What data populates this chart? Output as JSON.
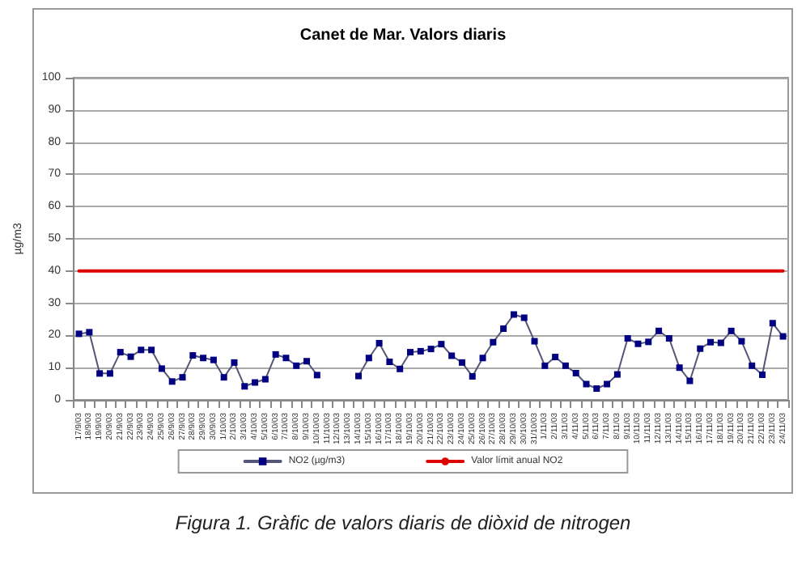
{
  "chart_data": {
    "type": "line",
    "title": "Canet de Mar. Valors diaris",
    "ylabel": "µg/m3",
    "categories": [
      "17/9/03",
      "18/9/03",
      "19/9/03",
      "20/9/03",
      "21/9/03",
      "22/9/03",
      "23/9/03",
      "24/9/03",
      "25/9/03",
      "26/9/03",
      "27/9/03",
      "28/9/03",
      "29/9/03",
      "30/9/03",
      "1/10/03",
      "2/10/03",
      "3/10/03",
      "4/10/03",
      "5/10/03",
      "6/10/03",
      "7/10/03",
      "8/10/03",
      "9/10/03",
      "10/10/03",
      "11/10/03",
      "12/10/03",
      "13/10/03",
      "14/10/03",
      "15/10/03",
      "16/10/03",
      "17/10/03",
      "18/10/03",
      "19/10/03",
      "20/10/03",
      "21/10/03",
      "22/10/03",
      "23/10/03",
      "24/10/03",
      "25/10/03",
      "26/10/03",
      "27/10/03",
      "28/10/03",
      "29/10/03",
      "30/10/03",
      "31/10/03",
      "1/11/03",
      "2/11/03",
      "3/11/03",
      "4/11/03",
      "5/11/03",
      "6/11/03",
      "7/11/03",
      "8/11/03",
      "9/11/03",
      "10/11/03",
      "11/11/03",
      "12/11/03",
      "13/11/03",
      "14/11/03",
      "15/11/03",
      "16/11/03",
      "17/11/03",
      "18/11/03",
      "19/11/03",
      "20/11/03",
      "21/11/03",
      "22/11/03",
      "23/11/03",
      "24/11/03"
    ],
    "series": [
      {
        "name": "NO2 (µg/m3)",
        "color": "#000080",
        "marker": "square",
        "values": [
          20.5,
          21,
          8.2,
          8.2,
          14.8,
          13.4,
          15.5,
          15.5,
          9.7,
          5.7,
          7,
          13.8,
          13,
          12.4,
          7,
          11.6,
          4.2,
          5.4,
          6.4,
          14.1,
          13,
          10.6,
          12,
          7.7,
          null,
          null,
          null,
          7.4,
          13,
          17.6,
          11.8,
          9.6,
          14.8,
          15.1,
          15.8,
          17.3,
          13.7,
          11.6,
          7.3,
          13,
          17.9,
          22.1,
          26.5,
          25.5,
          18.2,
          10.6,
          13.3,
          10.6,
          8.3,
          4.9,
          3.5,
          4.9,
          7.9,
          19.1,
          17.4,
          18,
          21.4,
          19.1,
          10,
          5.9,
          15.9,
          17.9,
          17.7,
          21.4,
          18.2,
          10.6,
          7.8,
          23.8,
          19.7
        ]
      },
      {
        "name": "Valor límit anual NO2",
        "color": "#dd0000",
        "marker": "none",
        "values": [
          40,
          40,
          40,
          40,
          40,
          40,
          40,
          40,
          40,
          40,
          40,
          40,
          40,
          40,
          40,
          40,
          40,
          40,
          40,
          40,
          40,
          40,
          40,
          40,
          40,
          40,
          40,
          40,
          40,
          40,
          40,
          40,
          40,
          40,
          40,
          40,
          40,
          40,
          40,
          40,
          40,
          40,
          40,
          40,
          40,
          40,
          40,
          40,
          40,
          40,
          40,
          40,
          40,
          40,
          40,
          40,
          40,
          40,
          40,
          40,
          40,
          40,
          40,
          40,
          40,
          40,
          40,
          40,
          40
        ]
      }
    ],
    "ylim": [
      0,
      100
    ],
    "yticks": [
      0,
      10,
      20,
      30,
      40,
      50,
      60,
      70,
      80,
      90,
      100
    ],
    "grid": "y",
    "legend": "bottom",
    "annotations": [
      "Figura 1. Gràfic de valors diaris de diòxid de nitrogen"
    ]
  }
}
